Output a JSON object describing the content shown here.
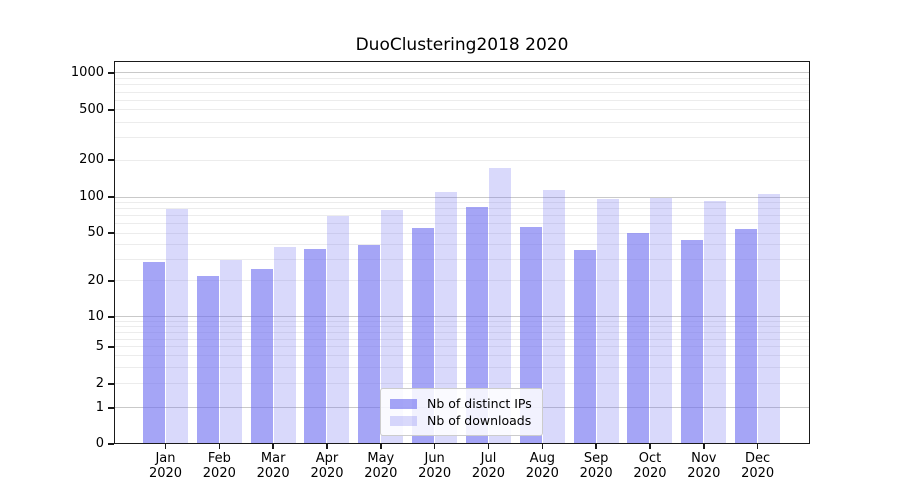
{
  "chart_data": {
    "type": "bar",
    "title": "DuoClustering2018 2020",
    "categories": [
      "Jan 2020",
      "Feb 2020",
      "Mar 2020",
      "Apr 2020",
      "May 2020",
      "Jun 2020",
      "Jul 2020",
      "Aug 2020",
      "Sep 2020",
      "Oct 2020",
      "Nov 2020",
      "Dec 2020"
    ],
    "series": [
      {
        "name": "Nb of distinct IPs",
        "values": [
          29,
          22,
          25,
          37,
          40,
          55,
          82,
          56,
          36,
          50,
          44,
          54
        ],
        "fill": "rgba(110,110,240,0.62)"
      },
      {
        "name": "Nb of downloads",
        "values": [
          80,
          30,
          38,
          70,
          78,
          110,
          173,
          115,
          96,
          98,
          93,
          106
        ],
        "fill": "rgba(110,110,240,0.26)"
      }
    ],
    "yscale": "symlog",
    "yticks": [
      0,
      1,
      2,
      5,
      10,
      20,
      50,
      100,
      200,
      500,
      1000
    ],
    "ylim": [
      0,
      1250
    ],
    "xlabel": "",
    "ylabel": "",
    "grid": true,
    "legend_position": "lower center"
  },
  "colors": {
    "major_grid": "#c9c9c9",
    "minor_grid": "#ececec",
    "spine": "#1a1a1a",
    "text": "#000000",
    "background": "#ffffff"
  }
}
